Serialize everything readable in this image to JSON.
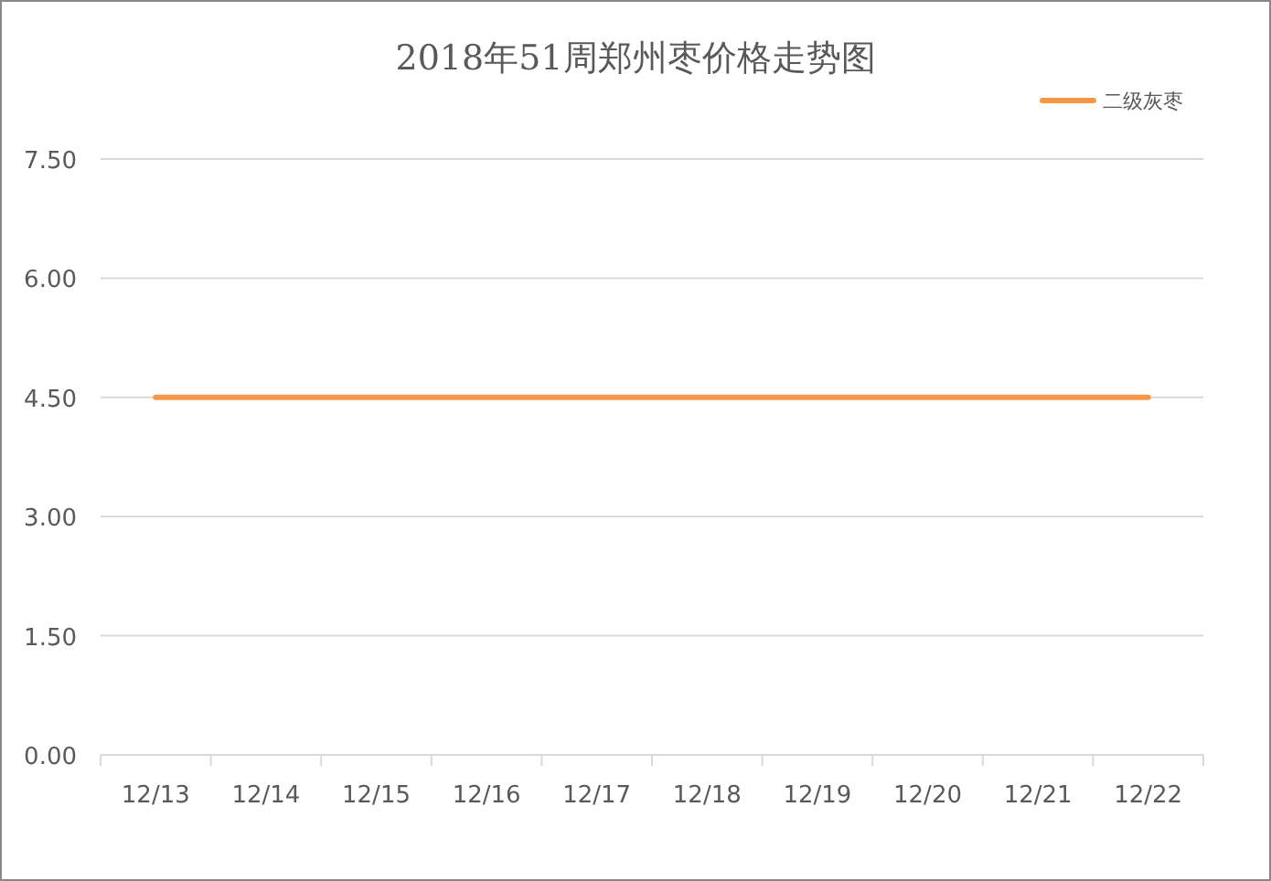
{
  "chart_data": {
    "type": "line",
    "title": "2018年51周郑州枣价格走势图",
    "categories": [
      "12/13",
      "12/14",
      "12/15",
      "12/16",
      "12/17",
      "12/18",
      "12/19",
      "12/20",
      "12/21",
      "12/22"
    ],
    "series": [
      {
        "name": "二级灰枣",
        "color": "#f79646",
        "values": [
          4.5,
          4.5,
          4.5,
          4.5,
          4.5,
          4.5,
          4.5,
          4.5,
          4.5,
          4.5
        ]
      }
    ],
    "ylim": [
      0,
      7.5
    ],
    "yticks": [
      {
        "value": 0,
        "label": "0.00"
      },
      {
        "value": 1.5,
        "label": "1.50"
      },
      {
        "value": 3,
        "label": "3.00"
      },
      {
        "value": 4.5,
        "label": "4.50"
      },
      {
        "value": 6,
        "label": "6.00"
      },
      {
        "value": 7.5,
        "label": "7.50"
      }
    ],
    "grid": "y",
    "legend": "top right"
  }
}
